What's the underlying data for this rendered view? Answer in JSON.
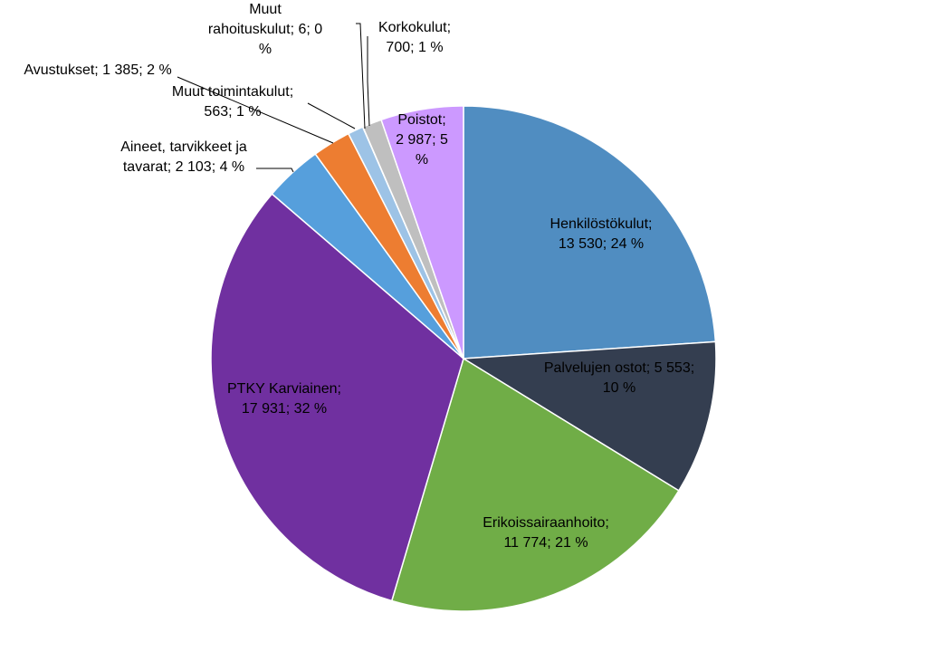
{
  "chart_data": {
    "type": "pie",
    "title": "",
    "slices": [
      {
        "name": "Henkilöstökulut",
        "value": 13530,
        "percent": 24,
        "color": "#508DC1",
        "label_lines": [
          "Henkilöstökulut;",
          "13 530; 24 %"
        ]
      },
      {
        "name": "Palvelujen ostot",
        "value": 5553,
        "percent": 10,
        "color": "#343E50",
        "label_lines": [
          "Palvelujen ostot; 5 553;",
          "10 %"
        ]
      },
      {
        "name": "Erikoissairaanhoito",
        "value": 11774,
        "percent": 21,
        "color": "#70AD47",
        "label_lines": [
          "Erikoissairaanhoito;",
          "11 774; 21 %"
        ]
      },
      {
        "name": "PTKY Karviainen",
        "value": 17931,
        "percent": 32,
        "color": "#7030A0",
        "label_lines": [
          "PTKY Karviainen;",
          "17 931; 32 %"
        ]
      },
      {
        "name": "Aineet, tarvikkeet ja tavarat",
        "value": 2103,
        "percent": 4,
        "color": "#569FDC",
        "label_lines": [
          "Aineet, tarvikkeet ja",
          "tavarat; 2 103; 4 %"
        ]
      },
      {
        "name": "Avustukset",
        "value": 1385,
        "percent": 2,
        "color": "#ED7D31",
        "label_lines": [
          "Avustukset; 1 385; 2 %"
        ]
      },
      {
        "name": "Muut toimintakulut",
        "value": 563,
        "percent": 1,
        "color": "#9DC3E6",
        "label_lines": [
          "Muut toimintakulut;",
          "563; 1 %"
        ]
      },
      {
        "name": "Muut rahoituskulut",
        "value": 6,
        "percent": 0,
        "color": "#FFC000",
        "label_lines": [
          "Muut",
          "rahoituskulut; 6; 0",
          "%"
        ]
      },
      {
        "name": "Korkokulut",
        "value": 700,
        "percent": 1,
        "color": "#BFBFBF",
        "label_lines": [
          "Korkokulut;",
          "700; 1 %"
        ]
      },
      {
        "name": "Poistot",
        "value": 2987,
        "percent": 5,
        "color": "#CC99FF",
        "label_lines": [
          "Poistot;",
          "2 987; 5",
          "%"
        ]
      }
    ],
    "legend": "none",
    "data_labels": "name; value; percent"
  }
}
